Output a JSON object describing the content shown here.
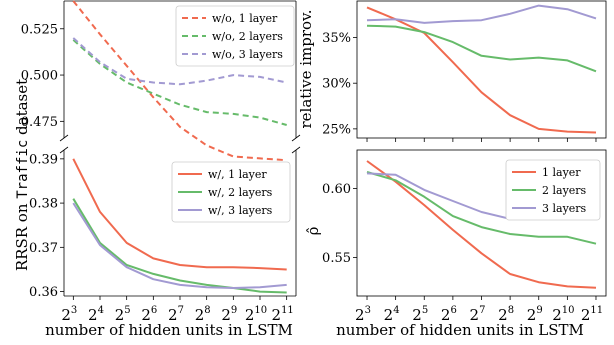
{
  "figure": {
    "shared_xlabel": "number of hidden units in LSTM",
    "left_ylabel_prefix": "RRSR on ",
    "left_ylabel_mono": "Traffic",
    "left_ylabel_suffix": " dataset",
    "x_tick_base": "2",
    "x_tick_exponents": [
      "3",
      "4",
      "5",
      "6",
      "7",
      "8",
      "9",
      "10",
      "11"
    ]
  },
  "colors": {
    "one_layer": "#f06a4f",
    "two_layers": "#66bb6a",
    "three_layers": "#a29ad2"
  },
  "chart_data": [
    {
      "id": "top_left",
      "type": "line",
      "line_style": "dashed",
      "x": [
        3,
        4,
        5,
        6,
        7,
        8,
        9,
        10,
        11
      ],
      "xscale": "log2",
      "ylabel": "",
      "ylim": [
        0.466,
        0.54
      ],
      "yticks": [
        0.475,
        0.5,
        0.525
      ],
      "ytick_labels": [
        "0.475",
        "0.500",
        "0.525"
      ],
      "legend_position": "top-right",
      "series": [
        {
          "name": "w/o, 1 layer",
          "color_key": "one_layer",
          "values": [
            0.54,
            0.522,
            0.505,
            0.488,
            0.472,
            0.462,
            0.456,
            0.455,
            0.454
          ]
        },
        {
          "name": "w/o, 2 layers",
          "color_key": "two_layers",
          "values": [
            0.519,
            0.506,
            0.496,
            0.49,
            0.484,
            0.48,
            0.479,
            0.477,
            0.473
          ]
        },
        {
          "name": "w/o, 3 layers",
          "color_key": "three_layers",
          "values": [
            0.52,
            0.507,
            0.498,
            0.496,
            0.495,
            0.497,
            0.5,
            0.499,
            0.496
          ]
        }
      ]
    },
    {
      "id": "bottom_left",
      "type": "line",
      "line_style": "solid",
      "x": [
        3,
        4,
        5,
        6,
        7,
        8,
        9,
        10,
        11
      ],
      "xscale": "log2",
      "ylabel": "",
      "ylim": [
        0.359,
        0.392
      ],
      "yticks": [
        0.36,
        0.37,
        0.38,
        0.39
      ],
      "ytick_labels": [
        "0.36",
        "0.37",
        "0.38",
        "0.39"
      ],
      "legend_position": "top-right",
      "series": [
        {
          "name": "w/, 1 layer",
          "color_key": "one_layer",
          "values": [
            0.39,
            0.378,
            0.371,
            0.3675,
            0.366,
            0.3655,
            0.3655,
            0.3653,
            0.365
          ]
        },
        {
          "name": "w/, 2 layers",
          "color_key": "two_layers",
          "values": [
            0.381,
            0.371,
            0.366,
            0.364,
            0.3625,
            0.3615,
            0.3608,
            0.36,
            0.3598
          ]
        },
        {
          "name": "w/, 3 layers",
          "color_key": "three_layers",
          "values": [
            0.38,
            0.3705,
            0.3655,
            0.3628,
            0.3615,
            0.361,
            0.3608,
            0.361,
            0.3615
          ]
        }
      ]
    },
    {
      "id": "top_right",
      "type": "line",
      "line_style": "solid",
      "x": [
        3,
        4,
        5,
        6,
        7,
        8,
        9,
        10,
        11
      ],
      "xscale": "log2",
      "ylabel": "relative improv.",
      "ylim": [
        24.0,
        39.0
      ],
      "yticks": [
        25,
        30,
        35
      ],
      "ytick_labels": [
        "25%",
        "30%",
        "35%"
      ],
      "series": [
        {
          "name": "1 layer",
          "color_key": "one_layer",
          "values": [
            38.3,
            37.0,
            35.5,
            32.3,
            29.0,
            26.5,
            25.0,
            24.7,
            24.6
          ]
        },
        {
          "name": "2 layers",
          "color_key": "two_layers",
          "values": [
            36.3,
            36.2,
            35.6,
            34.5,
            33.0,
            32.6,
            32.8,
            32.5,
            31.3
          ]
        },
        {
          "name": "3 layers",
          "color_key": "three_layers",
          "values": [
            36.9,
            37.0,
            36.6,
            36.8,
            36.9,
            37.6,
            38.5,
            38.1,
            37.1
          ]
        }
      ]
    },
    {
      "id": "bottom_right",
      "type": "line",
      "line_style": "solid",
      "x": [
        3,
        4,
        5,
        6,
        7,
        8,
        9,
        10,
        11
      ],
      "xscale": "log2",
      "ylabel": "ρ̂",
      "ylim": [
        0.522,
        0.628
      ],
      "yticks": [
        0.55,
        0.6
      ],
      "ytick_labels": [
        "0.55",
        "0.60"
      ],
      "legend_position": "top-right",
      "series": [
        {
          "name": "1 layer",
          "color_key": "one_layer",
          "values": [
            0.62,
            0.605,
            0.588,
            0.57,
            0.553,
            0.538,
            0.532,
            0.529,
            0.528
          ]
        },
        {
          "name": "2 layers",
          "color_key": "two_layers",
          "values": [
            0.612,
            0.606,
            0.594,
            0.58,
            0.572,
            0.567,
            0.565,
            0.565,
            0.56
          ]
        },
        {
          "name": "3 layers",
          "color_key": "three_layers",
          "values": [
            0.611,
            0.61,
            0.599,
            0.591,
            0.583,
            0.578,
            0.579,
            0.582,
            0.581
          ]
        }
      ]
    }
  ]
}
